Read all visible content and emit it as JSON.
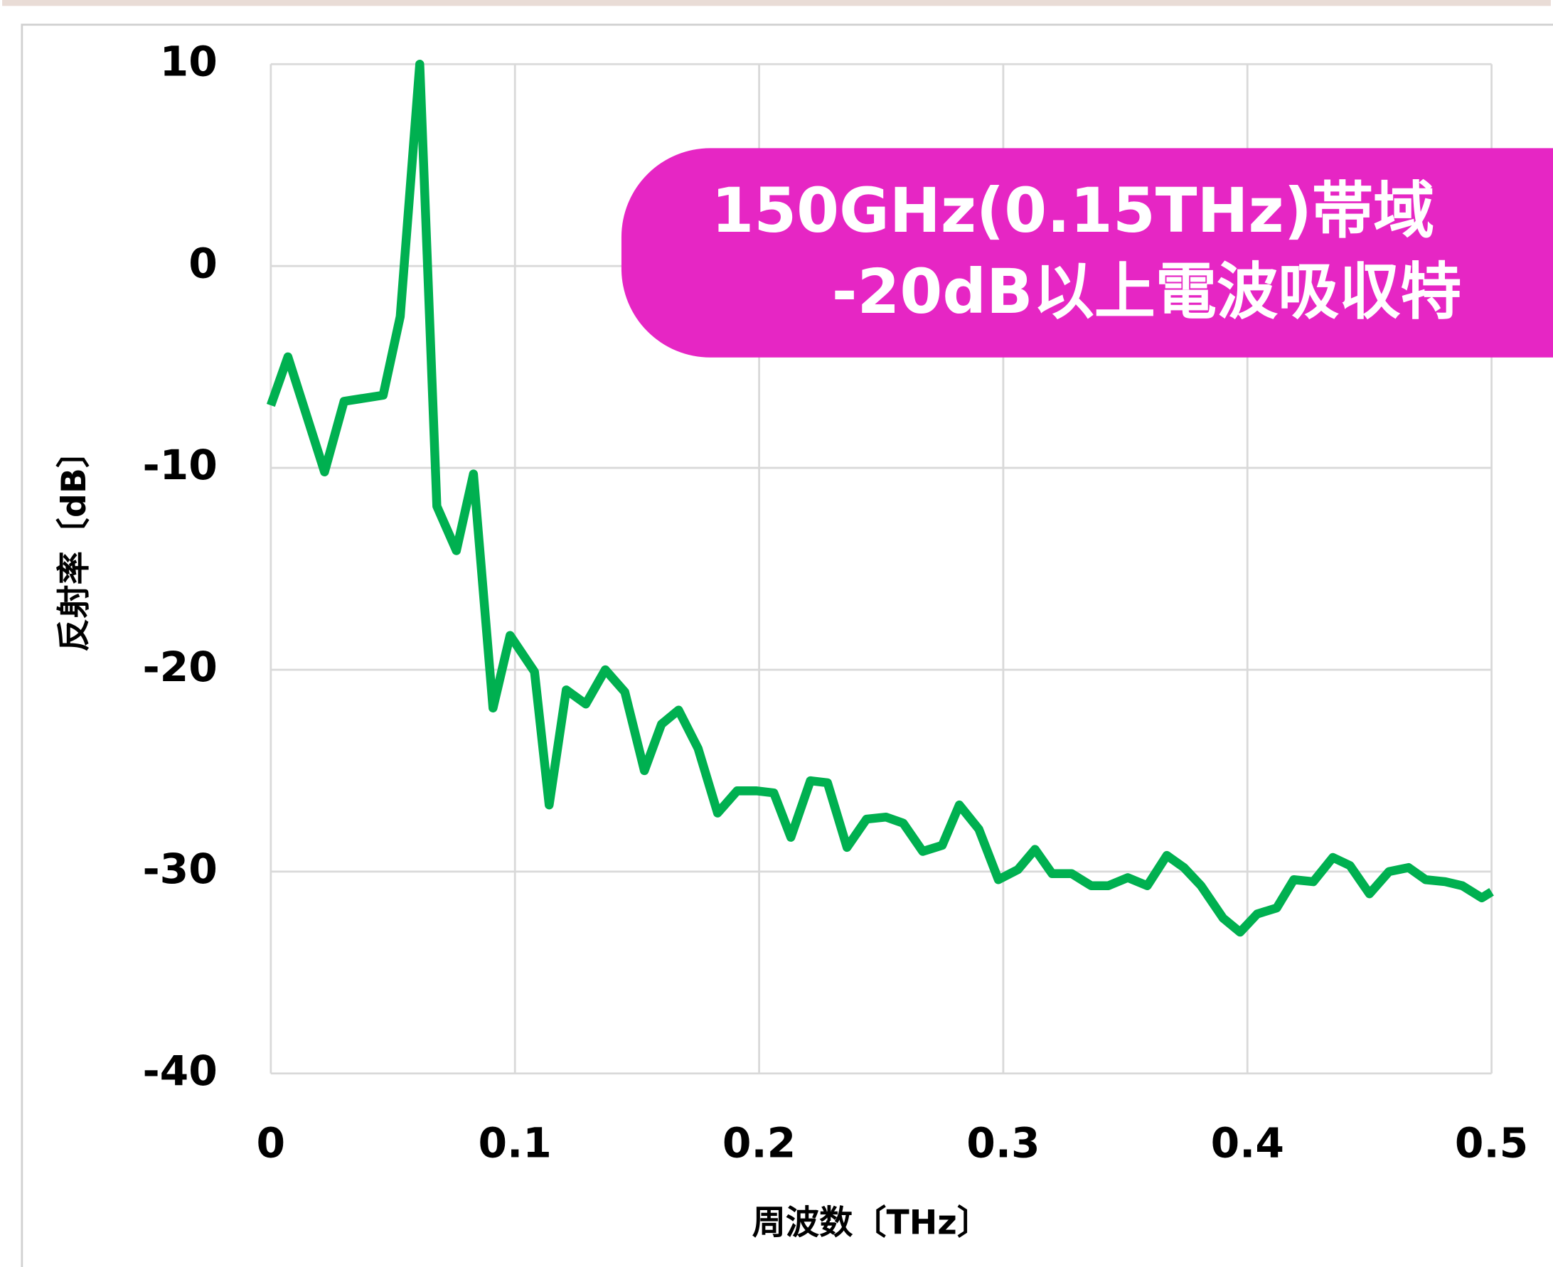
{
  "chart_data": {
    "type": "line",
    "x_label": "周波数〔THz〕",
    "y_label": "反射率〔dB〕",
    "annotation": [
      "150GHz(0.15THz)帯域",
      "-20dB以上電波吸収特"
    ],
    "annotation_color": "#e626c4",
    "grid": true,
    "xlim": [
      0,
      0.5
    ],
    "xticks": [
      0,
      0.1,
      0.2,
      0.3,
      0.4,
      0.5
    ],
    "ylim": [
      -40,
      10
    ],
    "yticks": [
      -40,
      -30,
      -20,
      -10,
      0,
      10
    ],
    "x": [
      0,
      0.007,
      0.022,
      0.03,
      0.046,
      0.053,
      0.061,
      0.068,
      0.076,
      0.083,
      0.091,
      0.098,
      0.108,
      0.114,
      0.121,
      0.129,
      0.137,
      0.145,
      0.153,
      0.16,
      0.167,
      0.175,
      0.183,
      0.191,
      0.199,
      0.206,
      0.213,
      0.221,
      0.228,
      0.236,
      0.244,
      0.252,
      0.259,
      0.267,
      0.275,
      0.282,
      0.29,
      0.298,
      0.306,
      0.313,
      0.32,
      0.328,
      0.336,
      0.343,
      0.351,
      0.359,
      0.367,
      0.374,
      0.381,
      0.39,
      0.397,
      0.404,
      0.412,
      0.419,
      0.427,
      0.435,
      0.442,
      0.45,
      0.458,
      0.466,
      0.473,
      0.481,
      0.488,
      0.496,
      0.5
    ],
    "series": [
      {
        "color": "#00b050",
        "values": [
          -6.9,
          -4.5,
          -10.2,
          -6.7,
          -6.4,
          -2.5,
          10.0,
          -11.9,
          -14.1,
          -10.3,
          -21.9,
          -18.3,
          -20.1,
          -26.7,
          -21.0,
          -21.7,
          -20.0,
          -21.1,
          -25.0,
          -22.7,
          -22.0,
          -23.9,
          -27.1,
          -26.0,
          -26.0,
          -26.1,
          -28.3,
          -25.5,
          -25.6,
          -28.8,
          -27.4,
          -27.3,
          -27.6,
          -29.0,
          -28.7,
          -26.7,
          -27.9,
          -30.4,
          -29.9,
          -28.9,
          -30.1,
          -30.1,
          -30.7,
          -30.7,
          -30.3,
          -30.7,
          -29.2,
          -29.8,
          -30.7,
          -32.3,
          -33.0,
          -32.1,
          -31.8,
          -30.4,
          -30.5,
          -29.3,
          -29.7,
          -31.1,
          -30.0,
          -29.8,
          -30.4,
          -30.5,
          -30.7,
          -31.3,
          -31.0
        ]
      }
    ]
  }
}
